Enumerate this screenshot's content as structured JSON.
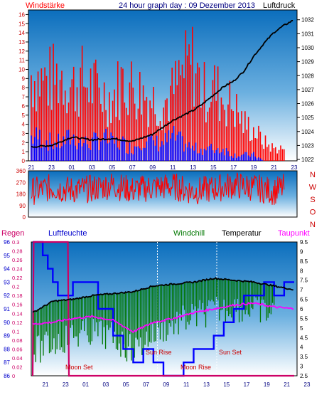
{
  "header": {
    "left_label": "Windstärke",
    "title": "24 hour graph day : 09 Dezember 2013",
    "right_label": "Luftdruck"
  },
  "legend": {
    "regen": "Regen",
    "luftfeuchte": "Luftfeuchte",
    "windchill": "Windchill",
    "temperatur": "Temperatur",
    "taupunkt": "Taupunkt"
  },
  "colors": {
    "wind_bar_red": "#ff0000",
    "wind_bar_blue": "#0000ff",
    "pressure_line": "#000000",
    "direction_line": "#ff0000",
    "rain_line": "#cc0066",
    "humidity_line": "#0000ff",
    "windchill_bars": "#007700",
    "temperature_line": "#000000",
    "dewpoint_line": "#ff00ff",
    "sky_top": "#0b6ebd",
    "sky_bottom": "#ffffff",
    "hours_text": "#000080",
    "event_text": "#cc0000"
  },
  "annotations": {
    "moon_set": "Moon Set",
    "sun_rise": "Sun Rise",
    "moon_rise": "Moon Rise",
    "sun_set": "Sun Set"
  },
  "chart_data": [
    {
      "type": "bar",
      "name": "wind-pressure",
      "x_ticks": [
        "21",
        "23",
        "01",
        "03",
        "05",
        "07",
        "09",
        "11",
        "13",
        "15",
        "17",
        "19",
        "21",
        "23"
      ],
      "y_left_ticks": [
        "0",
        "1",
        "2",
        "3",
        "4",
        "5",
        "6",
        "7",
        "8",
        "9",
        "10",
        "11",
        "12",
        "13",
        "14",
        "15",
        "16"
      ],
      "y_left_range": [
        0,
        16.5
      ],
      "y_right_ticks": [
        "1032",
        "1031",
        "1030",
        "1029",
        "1028",
        "1027",
        "1026",
        "1025",
        "1024",
        "1023",
        "1022"
      ],
      "y_right_range": [
        1021.9,
        1032.7
      ],
      "series": [
        {
          "name": "Windstärke",
          "hours": [
            0,
            1,
            2,
            3,
            4,
            5,
            6,
            7,
            8,
            9,
            10,
            11,
            12,
            13,
            14,
            15,
            16,
            17,
            18,
            19,
            20,
            21,
            22,
            23,
            24,
            25
          ],
          "gust": [
            14,
            13,
            13,
            14,
            12,
            13,
            12,
            11,
            10,
            13,
            12,
            11,
            10,
            9,
            11,
            14,
            16,
            11,
            12,
            10,
            9,
            6,
            5,
            3,
            2,
            2
          ],
          "mean": [
            4,
            4,
            3,
            3,
            4,
            3,
            3,
            4,
            3,
            3,
            2,
            4,
            3,
            3,
            4,
            3,
            2,
            2,
            2,
            2,
            1,
            1,
            1,
            0,
            0,
            0
          ]
        },
        {
          "name": "Luftdruck",
          "hours": [
            0,
            2,
            4,
            6,
            8,
            10,
            12,
            14,
            16,
            17,
            18,
            19,
            20,
            21,
            22,
            23,
            24,
            25,
            26
          ],
          "values": [
            1022.9,
            1023.0,
            1023.6,
            1023.4,
            1023.5,
            1023.3,
            1023.8,
            1024.8,
            1025.5,
            1026.0,
            1026.6,
            1027.2,
            1027.6,
            1028.3,
            1029.4,
            1030.3,
            1031.1,
            1031.6,
            1032.0
          ]
        }
      ]
    },
    {
      "type": "line",
      "name": "wind-direction",
      "y_ticks": [
        "360",
        "270",
        "180",
        "90",
        "0"
      ],
      "y_range": [
        0,
        360
      ],
      "y_right_labels": [
        "N",
        "W",
        "S",
        "O",
        "N"
      ],
      "series": [
        {
          "name": "Windrichtung",
          "hours": [
            0,
            2,
            4,
            6,
            8,
            10,
            12,
            14,
            16,
            18,
            20,
            22,
            24,
            25
          ],
          "values": [
            200,
            230,
            210,
            220,
            250,
            210,
            230,
            240,
            200,
            220,
            250,
            230,
            200,
            230
          ]
        }
      ]
    },
    {
      "type": "line",
      "name": "humidity-temperature",
      "y_rain_ticks": [
        "0.3",
        "0.28",
        "0.26",
        "0.24",
        "0.22",
        "0.2",
        "0.18",
        "0.16",
        "0.14",
        "0.12",
        "0.1",
        "0.08",
        "0.06",
        "0.04",
        "0.02",
        "0"
      ],
      "y_rain_range": [
        0,
        0.3
      ],
      "y_humidity_ticks": [
        "96",
        "95",
        "94",
        "93",
        "92",
        "91",
        "90",
        "89",
        "88",
        "87",
        "86"
      ],
      "y_humidity_range": [
        86,
        96
      ],
      "y_temp_ticks": [
        "9.5",
        "9",
        "8.5",
        "8",
        "7.5",
        "7",
        "6.5",
        "6",
        "5.5",
        "5",
        "4.5",
        "4",
        "3.5",
        "3",
        "2.5"
      ],
      "y_temp_range": [
        2.5,
        9.5
      ],
      "series": [
        {
          "name": "Regen",
          "hours": [
            0,
            0.1,
            3.5,
            3.6,
            26
          ],
          "values": [
            0,
            0.3,
            0.3,
            0,
            0
          ]
        },
        {
          "name": "Luftfeuchte",
          "hours": [
            0,
            1,
            1.5,
            2,
            2.5,
            3.8,
            4,
            6,
            6.5,
            8,
            9,
            10,
            11,
            12,
            13,
            14,
            15,
            16,
            17,
            18,
            19,
            20,
            21,
            22,
            23,
            24,
            25,
            26
          ],
          "values": [
            96,
            95,
            94,
            93,
            92,
            92,
            93,
            93,
            91,
            89,
            88,
            87,
            88,
            87,
            86,
            86,
            87,
            88,
            88,
            89,
            90,
            91,
            92,
            92,
            93,
            92,
            93,
            93
          ]
        },
        {
          "name": "Temperatur",
          "hours": [
            0,
            2,
            4,
            6,
            8,
            10,
            12,
            14,
            16,
            18,
            20,
            22,
            24,
            26
          ],
          "values": [
            5.8,
            6.4,
            6.5,
            6.7,
            6.8,
            6.9,
            7.2,
            7.3,
            7.4,
            7.6,
            7.5,
            7.4,
            7.2,
            7.0
          ]
        },
        {
          "name": "Taupunkt",
          "hours": [
            0,
            2,
            4,
            6,
            8,
            10,
            12,
            14,
            16,
            18,
            20,
            22,
            24,
            26
          ],
          "values": [
            5.2,
            5.3,
            5.5,
            5.6,
            5.4,
            4.8,
            5.3,
            5.5,
            5.8,
            6.0,
            6.2,
            6.3,
            6.1,
            6.0
          ]
        },
        {
          "name": "Windchill",
          "hours": [
            0,
            2,
            4,
            6,
            8,
            10,
            12,
            14,
            16,
            18,
            20,
            22,
            24
          ],
          "values": [
            4.5,
            5.0,
            5.4,
            5.6,
            5.3,
            4.6,
            5.5,
            6.0,
            6.4,
            6.7,
            6.9,
            6.8,
            6.5
          ]
        }
      ]
    }
  ]
}
